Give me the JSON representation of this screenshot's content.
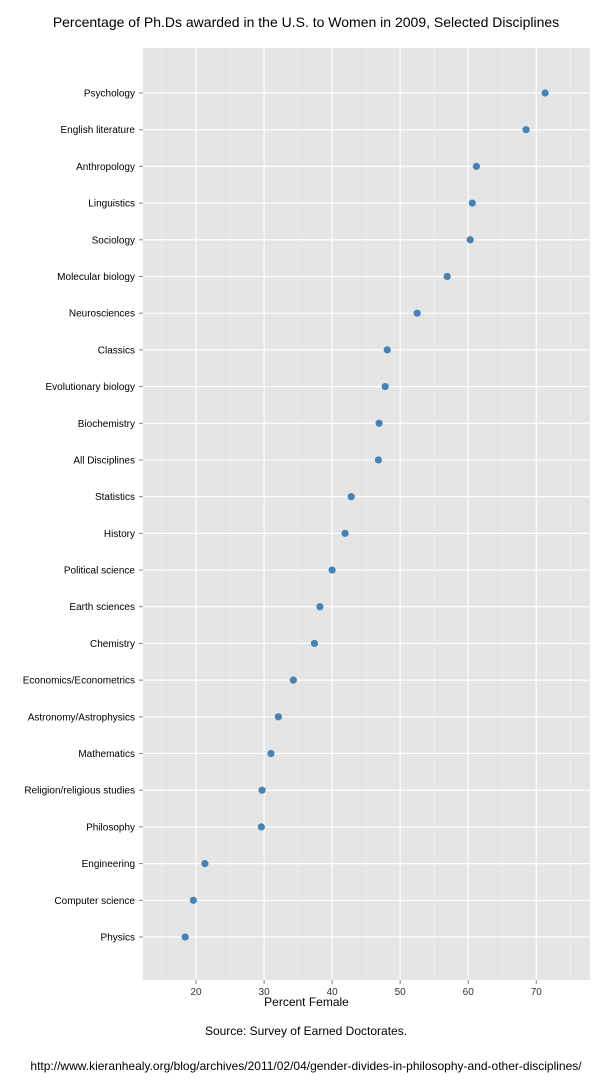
{
  "chart_data": {
    "type": "scatter",
    "title": "Percentage of Ph.Ds awarded in the U.S. to Women in 2009, Selected Disciplines",
    "xlabel": "Percent Female",
    "ylabel": "",
    "xlim": [
      12.2,
      77.9
    ],
    "xticks": [
      20,
      30,
      40,
      50,
      60,
      70
    ],
    "grid": true,
    "point_color": "#4682B4",
    "background_color": "#E5E5E5",
    "categories": [
      "Psychology",
      "English literature",
      "Anthropology",
      "Linguistics",
      "Sociology",
      "Molecular biology",
      "Neurosciences",
      "Classics",
      "Evolutionary biology",
      "Biochemistry",
      "All Disciplines",
      "Statistics",
      "History",
      "Political science",
      "Earth sciences",
      "Chemistry",
      "Economics/Econometrics",
      "Astronomy/Astrophysics",
      "Mathematics",
      "Religion/religious studies",
      "Philosophy",
      "Engineering",
      "Computer science",
      "Physics"
    ],
    "values": [
      71.3,
      68.5,
      61.2,
      60.6,
      60.3,
      56.9,
      52.5,
      48.1,
      47.8,
      46.9,
      46.8,
      42.8,
      41.9,
      40.0,
      38.2,
      37.4,
      34.3,
      32.1,
      31.0,
      29.7,
      29.6,
      21.3,
      19.6,
      18.4
    ]
  },
  "caption": "Source: Survey of Earned Doctorates.",
  "url": "http://www.kieranhealy.org/blog/archives/2011/02/04/gender-divides-in-philosophy-and-other-disciplines/"
}
